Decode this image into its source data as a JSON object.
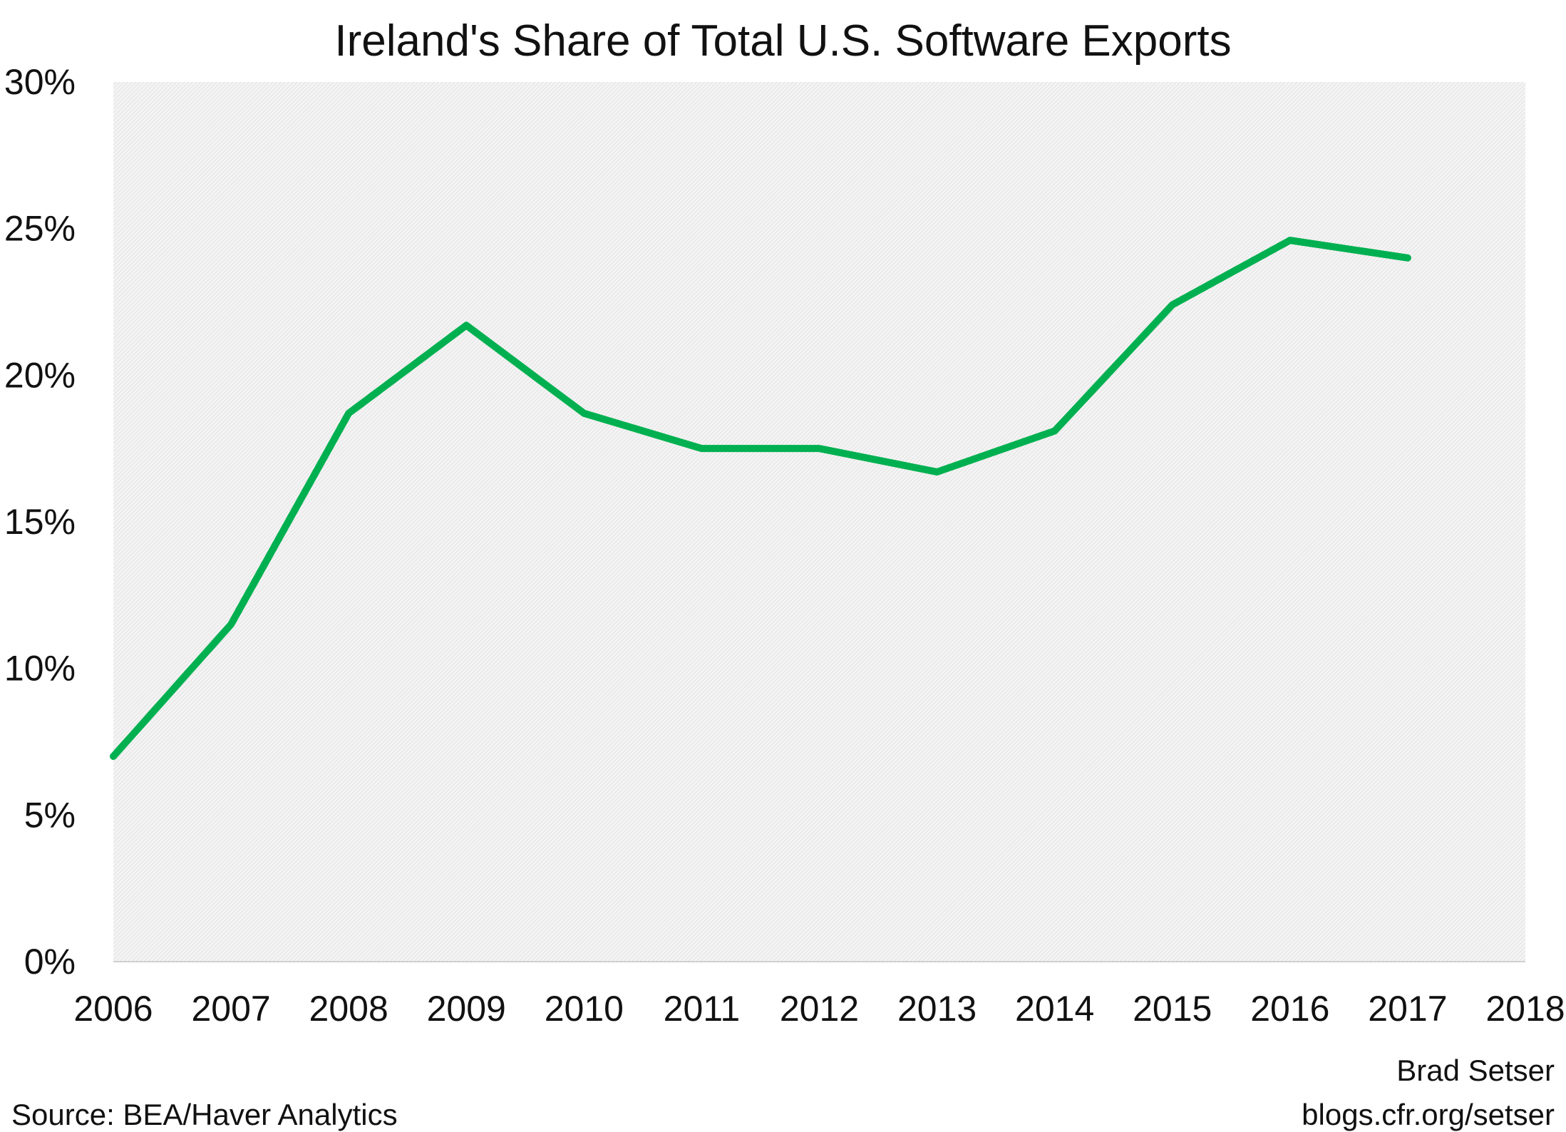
{
  "chart_data": {
    "type": "line",
    "title": "Ireland's Share of Total U.S. Software Exports",
    "xlabel": "",
    "ylabel": "",
    "x_ticks": [
      "2006",
      "2007",
      "2008",
      "2009",
      "2010",
      "2011",
      "2012",
      "2013",
      "2014",
      "2015",
      "2016",
      "2017",
      "2018"
    ],
    "y_ticks": [
      "0%",
      "5%",
      "10%",
      "15%",
      "20%",
      "25%",
      "30%"
    ],
    "xlim": [
      2006,
      2018
    ],
    "ylim": [
      0,
      30
    ],
    "grid": false,
    "series": [
      {
        "color": "#00b050",
        "x": [
          2006,
          2007,
          2008,
          2009,
          2010,
          2011,
          2012,
          2013,
          2014,
          2015,
          2016,
          2017
        ],
        "values": [
          7.0,
          11.5,
          18.7,
          21.7,
          18.7,
          17.5,
          17.5,
          16.7,
          18.1,
          22.4,
          24.6,
          24.0
        ]
      }
    ],
    "plot_background": "#ececec"
  },
  "footer": {
    "source": "Source: BEA/Haver Analytics",
    "author": "Brad Setser",
    "site": "blogs.cfr.org/setser"
  }
}
